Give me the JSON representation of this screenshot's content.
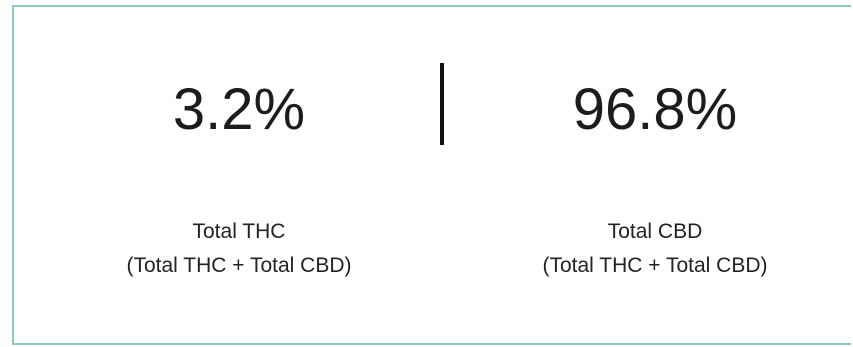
{
  "stats": [
    {
      "value": "3.2%",
      "label_line1": "Total THC",
      "label_line2": "(Total THC + Total CBD)"
    },
    {
      "value": "96.8%",
      "label_line1": "Total CBD",
      "label_line2": "(Total THC + Total CBD)"
    }
  ],
  "colors": {
    "border": "#8ec9c1",
    "text": "#1c1c1c",
    "divider": "#111111"
  }
}
